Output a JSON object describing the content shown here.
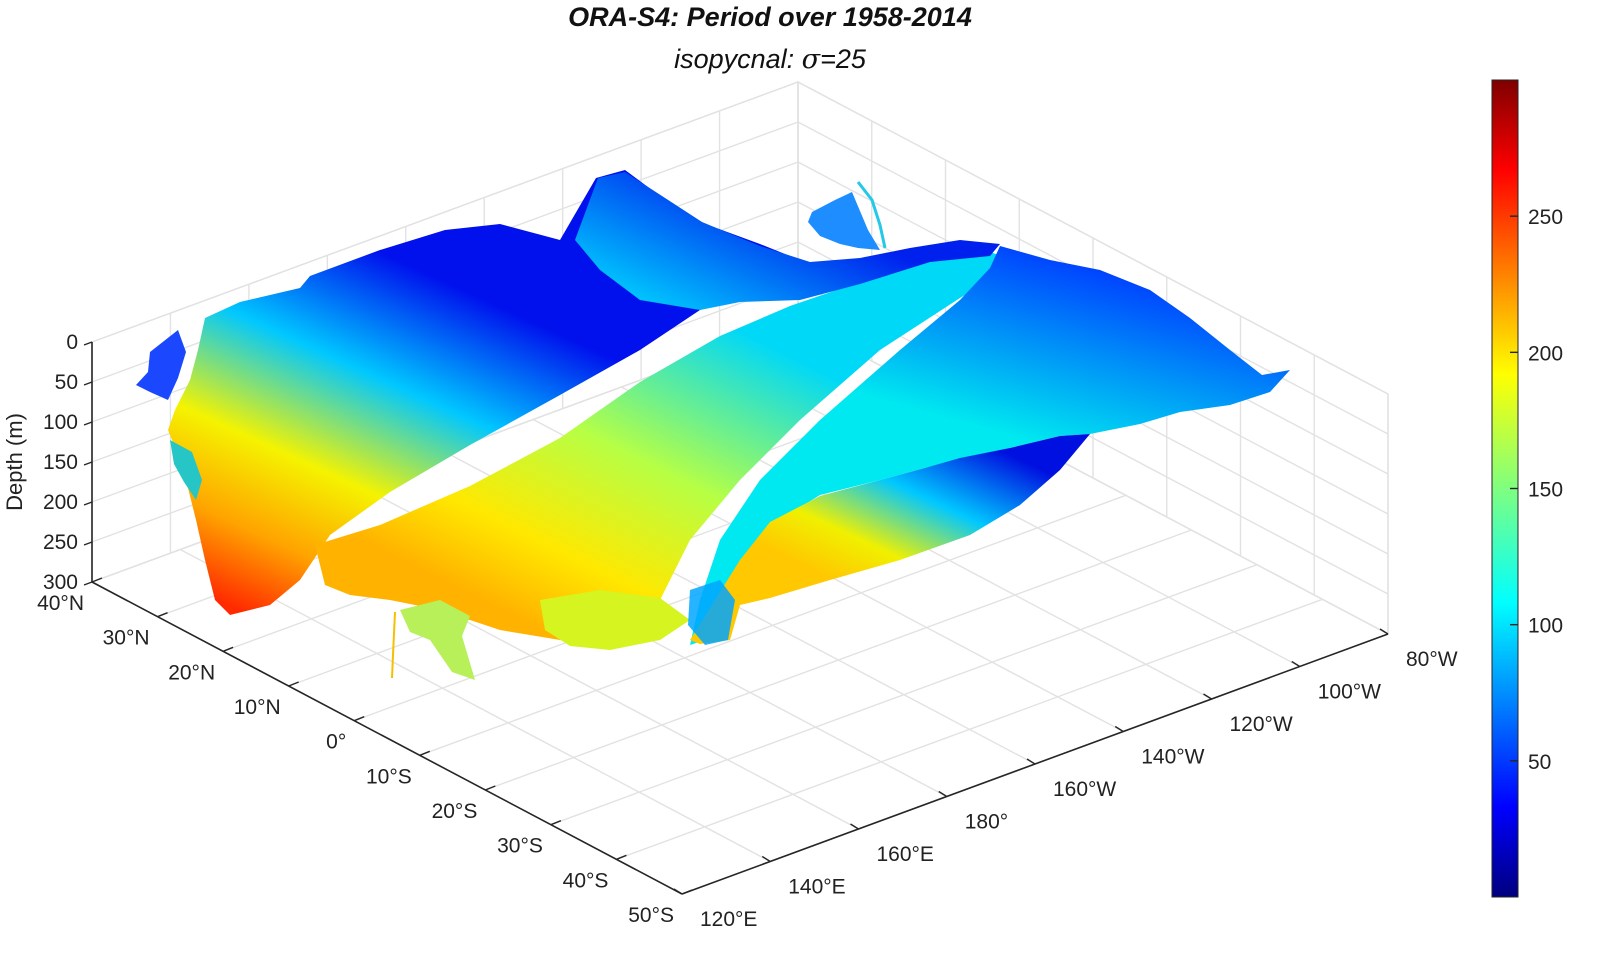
{
  "chart_data": {
    "type": "surface3d",
    "title": "ORA-S4: Period over 1958-2014",
    "subtitle_prefix": "isopycnal: ",
    "subtitle_symbol": "σ",
    "subtitle_suffix": "=25",
    "zlabel": "Depth (m)",
    "zlim": [
      0,
      300
    ],
    "z_reversed": true,
    "z_ticks": [
      "0",
      "50",
      "100",
      "150",
      "200",
      "250",
      "300"
    ],
    "lat_ticks": [
      "40°N",
      "30°N",
      "20°N",
      "10°N",
      "0°",
      "10°S",
      "20°S",
      "30°S",
      "40°S",
      "50°S"
    ],
    "lon_ticks": [
      "120°E",
      "140°E",
      "160°E",
      "180°",
      "160°W",
      "140°W",
      "120°W",
      "100°W",
      "80°W"
    ],
    "lat_range": [
      -50,
      40
    ],
    "lon_range": [
      120,
      280
    ],
    "colorbar": {
      "colormap": "jet",
      "range": [
        0,
        300
      ],
      "ticks": [
        "50",
        "100",
        "150",
        "200",
        "250"
      ]
    },
    "grid": true
  }
}
